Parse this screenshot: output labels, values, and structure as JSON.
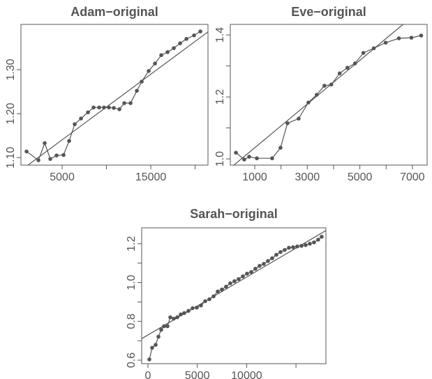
{
  "chart_data": [
    {
      "type": "line",
      "title": "Adam−original",
      "series": [
        {
          "color": "#555555",
          "markers": true,
          "x": [
            984,
            2323,
            3031,
            3661,
            4370,
            5157,
            5787,
            6417,
            7126,
            7913,
            8543,
            9173,
            9724,
            10276,
            10827,
            11457,
            12008,
            12717,
            13425,
            13976,
            14764,
            15472,
            16181,
            16890,
            17598,
            18307,
            19016,
            19882,
            20591
          ],
          "values": [
            1.114,
            1.094,
            1.133,
            1.097,
            1.105,
            1.106,
            1.138,
            1.176,
            1.189,
            1.203,
            1.214,
            1.214,
            1.214,
            1.214,
            1.213,
            1.21,
            1.224,
            1.224,
            1.252,
            1.273,
            1.297,
            1.314,
            1.333,
            1.34,
            1.349,
            1.36,
            1.37,
            1.378,
            1.387
          ]
        },
        {
          "color": "#555555",
          "markers": false,
          "x": [
            1142,
            21457
          ],
          "values": [
            1.083,
            1.386
          ]
        }
      ],
      "xlim": [
        350,
        21450
      ],
      "ylim": [
        1.083,
        1.403
      ],
      "xticks": [
        5000,
        {
          "value": 10000
        },
        15000,
        {
          "value": 20000
        }
      ],
      "yticks": [
        {
          "value": 1.1,
          "label": "1.10"
        },
        {
          "value": 1.2,
          "label": "1.20"
        },
        {
          "value": 1.3,
          "label": "1.30"
        }
      ]
    },
    {
      "type": "line",
      "title": "Eve−original",
      "series": [
        {
          "color": "#555555",
          "markers": true,
          "x": [
            284,
            602,
            788,
            1080,
            1663,
            1981,
            2246,
            2670,
            3041,
            3359,
            3650,
            3915,
            4233,
            4525,
            4816,
            5134,
            5532,
            5982,
            6486,
            6963,
            7334
          ],
          "values": [
            1.02,
            0.998,
            1.007,
            1.002,
            1.002,
            1.036,
            1.115,
            1.13,
            1.182,
            1.207,
            1.236,
            1.24,
            1.276,
            1.294,
            1.308,
            1.342,
            1.357,
            1.375,
            1.389,
            1.391,
            1.398
          ]
        },
        {
          "color": "#555555",
          "markers": false,
          "x": [
            205,
            6645
          ],
          "values": [
            0.98,
            1.434
          ]
        }
      ],
      "xlim": [
        70,
        7560
      ],
      "ylim": [
        0.98,
        1.434
      ],
      "xticks": [
        1000,
        {
          "value": 2000
        },
        3000,
        {
          "value": 4000
        },
        5000,
        {
          "value": 6000
        },
        7000
      ],
      "yticks": [
        {
          "value": 1.0,
          "label": "1.0"
        },
        {
          "value": 1.1
        },
        {
          "value": 1.2,
          "label": "1.2"
        },
        {
          "value": 1.3
        },
        {
          "value": 1.4,
          "label": "1.4"
        }
      ]
    },
    {
      "type": "line",
      "title": "Sarah−original",
      "series": [
        {
          "color": "#555555",
          "markers": true,
          "x": [
            141,
            424,
            778,
            1061,
            1343,
            1626,
            1980,
            2262,
            2616,
            2969,
            3323,
            3676,
            4101,
            4525,
            4949,
            5373,
            5797,
            6222,
            6646,
            7070,
            7494,
            7918,
            8343,
            8767,
            9191,
            9615,
            10039,
            10464,
            10888,
            11312,
            11736,
            12160,
            12585,
            13009,
            13433,
            13857,
            14281,
            14706,
            15130,
            15554,
            15978,
            16402,
            16827,
            17251,
            17604
          ],
          "values": [
            0.604,
            0.664,
            0.679,
            0.721,
            0.757,
            0.775,
            0.775,
            0.821,
            0.814,
            0.821,
            0.836,
            0.843,
            0.854,
            0.868,
            0.871,
            0.882,
            0.904,
            0.914,
            0.929,
            0.954,
            0.964,
            0.979,
            0.996,
            1.007,
            1.018,
            1.032,
            1.046,
            1.054,
            1.071,
            1.086,
            1.096,
            1.111,
            1.125,
            1.143,
            1.157,
            1.168,
            1.179,
            1.182,
            1.186,
            1.189,
            1.193,
            1.2,
            1.207,
            1.221,
            1.236
          ]
        },
        {
          "color": "#555555",
          "markers": false,
          "x": [
            -637,
            18034
          ],
          "values": [
            0.711,
            1.268
          ]
        }
      ],
      "xlim": [
        -637,
        18034
      ],
      "ylim": [
        0.582,
        1.282
      ],
      "xticks": [
        0,
        5000,
        10000,
        {
          "value": 15000
        }
      ],
      "yticks": [
        {
          "value": 0.6,
          "label": "0.6"
        },
        {
          "value": 0.7
        },
        {
          "value": 0.8,
          "label": "0.8"
        },
        {
          "value": 0.9
        },
        {
          "value": 1.0,
          "label": "1.0"
        },
        {
          "value": 1.1
        },
        {
          "value": 1.2,
          "label": "1.2"
        }
      ]
    }
  ]
}
